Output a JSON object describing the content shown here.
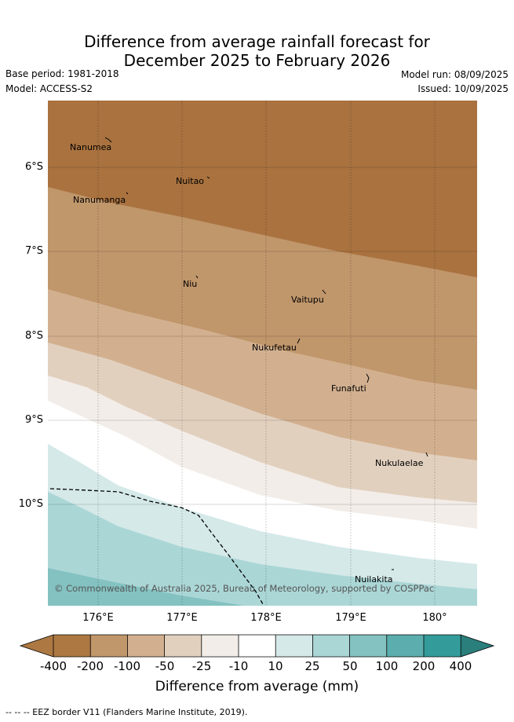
{
  "title": {
    "line1": "Difference from average rainfall forecast for",
    "line2": "December 2025 to February 2026"
  },
  "meta": {
    "base_period": "Base period: 1981-2018",
    "model": "Model: ACCESS-S2",
    "model_run": "Model run: 08/09/2025",
    "issued": "Issued: 10/09/2025"
  },
  "map": {
    "lat_ticks": [
      "6°S",
      "7°S",
      "8°S",
      "9°S",
      "10°S"
    ],
    "lon_ticks": [
      "176°E",
      "177°E",
      "178°E",
      "179°E",
      "180°"
    ],
    "places": [
      "Nanumea",
      "Nuitao",
      "Nanumanga",
      "Niu",
      "Vaitupu",
      "Nukufetau",
      "Funafuti",
      "Nukulaelae",
      "Nuilakita"
    ],
    "copyright": "© Commonwealth of Australia 2025, Bureau of Meteorology, supported by COSPPac"
  },
  "colorbar": {
    "colors": [
      "#a9723f",
      "#ad7842",
      "#c0966b",
      "#d2b08f",
      "#e2d0bf",
      "#f2ede8",
      "#ffffff",
      "#d5e9e9",
      "#abd6d6",
      "#83c2c1",
      "#5baead",
      "#339c9a",
      "#2a7e7c"
    ],
    "labels": [
      "-400",
      "-200",
      "-100",
      "-50",
      "-25",
      "-10",
      "10",
      "25",
      "50",
      "100",
      "200",
      "400"
    ],
    "title": "Difference from average (mm)"
  },
  "footer": "-- -- -- EEZ border V11 (Flanders Marine Institute, 2019)."
}
